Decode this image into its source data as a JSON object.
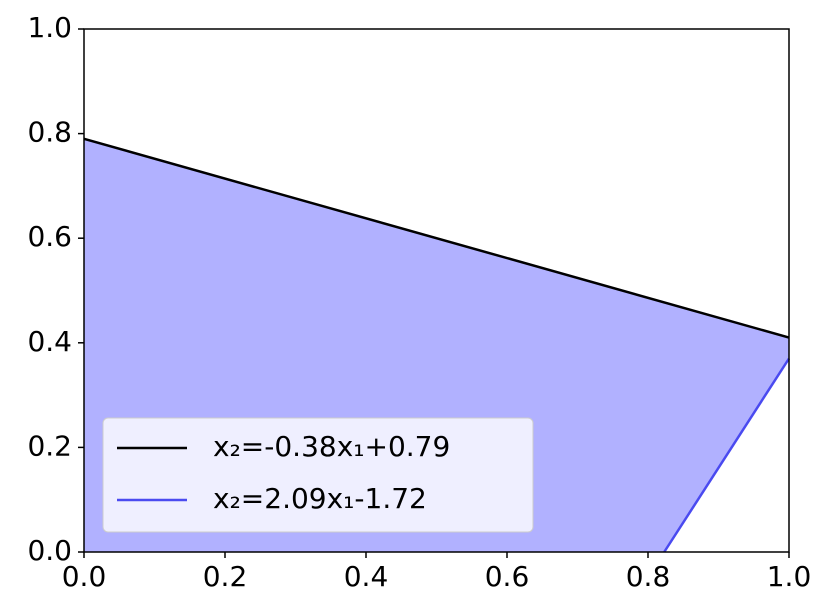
{
  "chart_data": {
    "type": "line",
    "series": [
      {
        "name": "x₂=-0.38x₁+0.79",
        "color": "#000000",
        "x": [
          0,
          1
        ],
        "y": [
          0.79,
          0.41
        ]
      },
      {
        "name": "x₂=2.09x₁-1.72",
        "color": "#4a4af0",
        "x": [
          0.823,
          1
        ],
        "y": [
          0,
          0.37
        ]
      }
    ],
    "fill": {
      "color": "#b1b1ff",
      "x": [
        0,
        0,
        1,
        1,
        0.823
      ],
      "y": [
        0,
        0.79,
        0.41,
        0.37,
        0
      ]
    },
    "xlim": [
      0,
      1
    ],
    "ylim": [
      0,
      1
    ],
    "xticks": [
      {
        "value": 0,
        "label": "0.0"
      },
      0.2,
      0.4,
      0.6,
      0.8,
      {
        "value": 1,
        "label": "1.0"
      }
    ],
    "yticks": [
      {
        "value": 0,
        "label": "0.0"
      },
      0.2,
      0.4,
      0.6,
      0.8,
      {
        "value": 1,
        "label": "1.0"
      }
    ],
    "legend": "lower left"
  }
}
